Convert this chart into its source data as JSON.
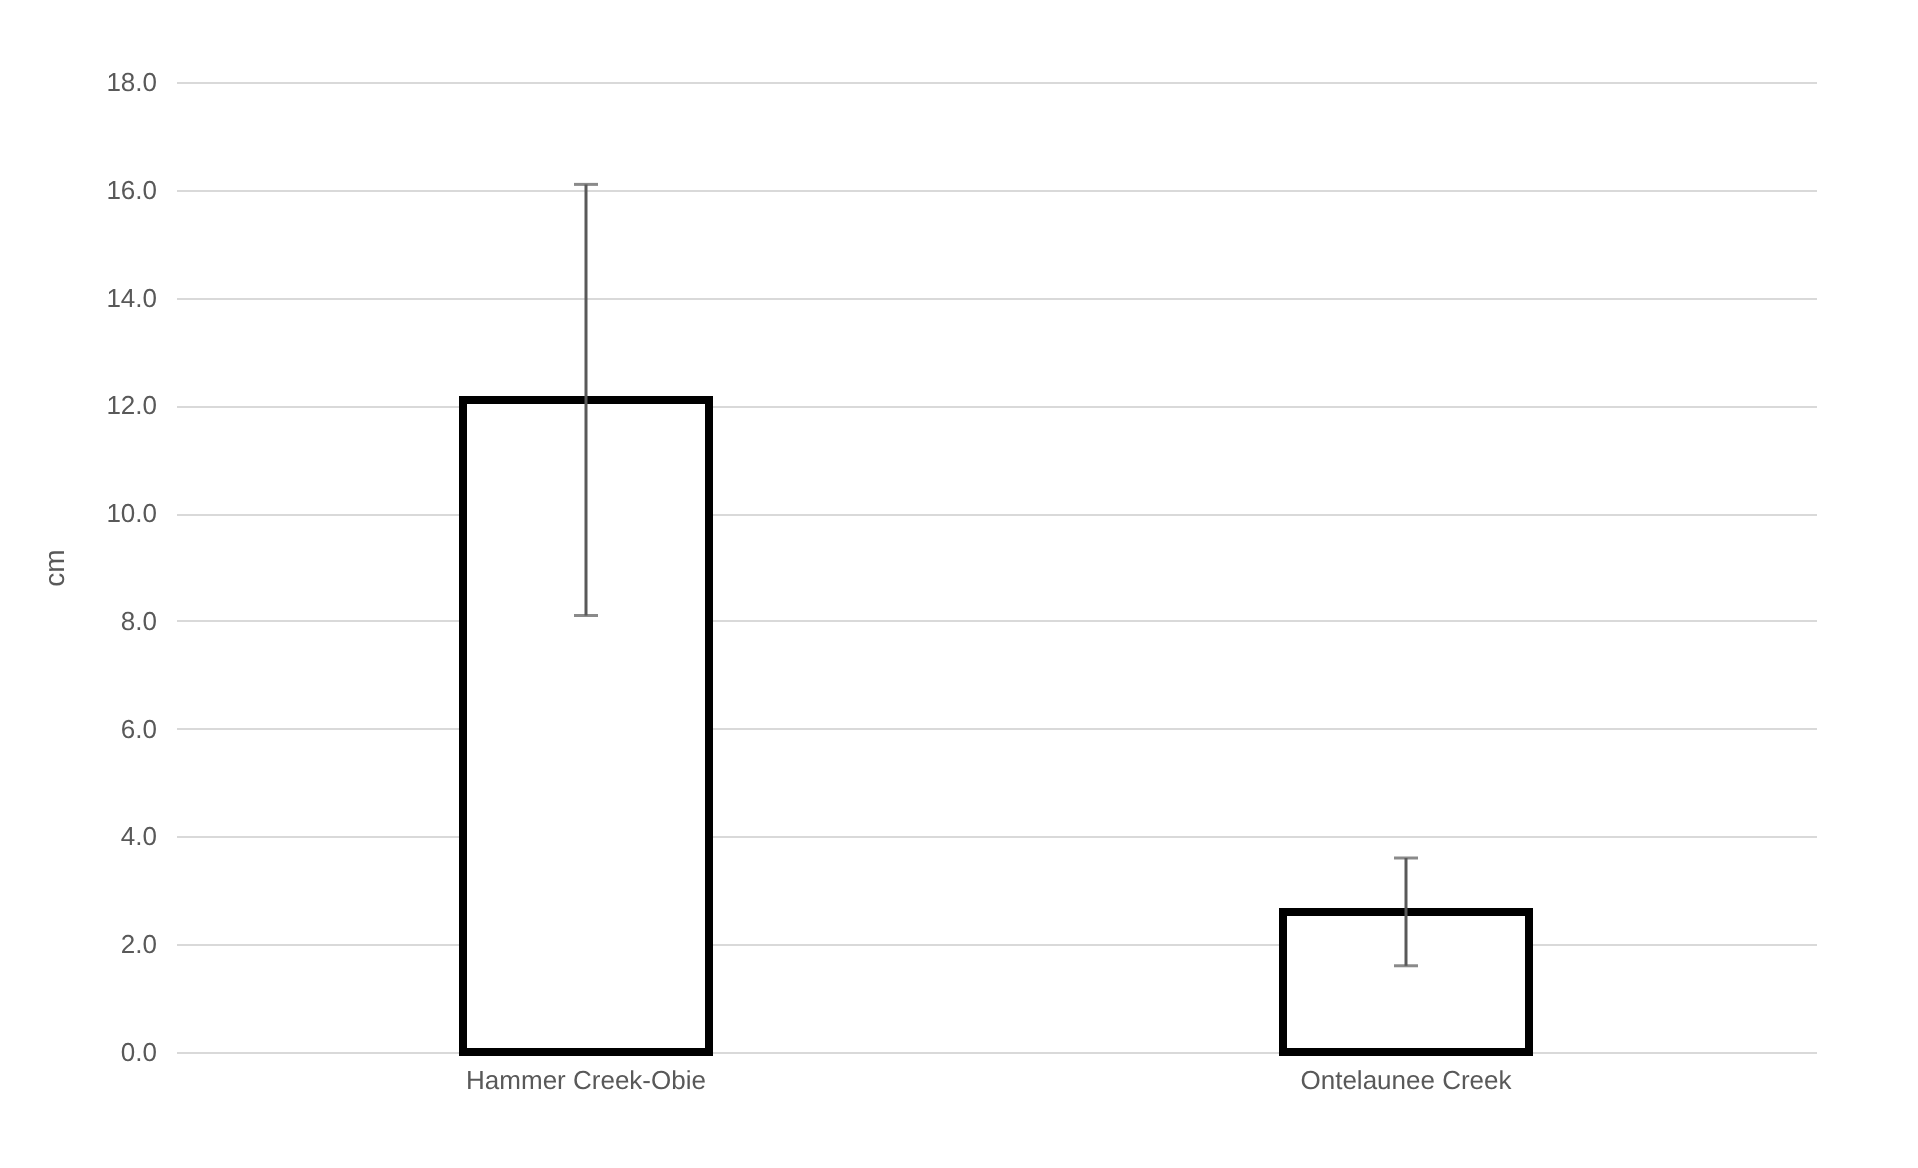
{
  "chart_data": {
    "type": "bar",
    "ylabel": "cm",
    "categories": [
      "Hammer Creek-Obie",
      "Ontelaunee Creek"
    ],
    "values": [
      12.1,
      2.6
    ],
    "errors": [
      4.0,
      1.0
    ],
    "color": "#ffffff",
    "ylim": [
      0,
      18
    ],
    "yticks": [
      {
        "value": 0,
        "label": "0.0"
      },
      {
        "value": 2,
        "label": "2.0"
      },
      {
        "value": 4,
        "label": "4.0"
      },
      {
        "value": 6,
        "label": "6.0"
      },
      {
        "value": 8,
        "label": "8.0"
      },
      {
        "value": 10,
        "label": "10.0"
      },
      {
        "value": 12,
        "label": "12.0"
      },
      {
        "value": 14,
        "label": "14.0"
      },
      {
        "value": 16,
        "label": "16.0"
      },
      {
        "value": 18,
        "label": "18.0"
      }
    ],
    "grid": "y"
  }
}
